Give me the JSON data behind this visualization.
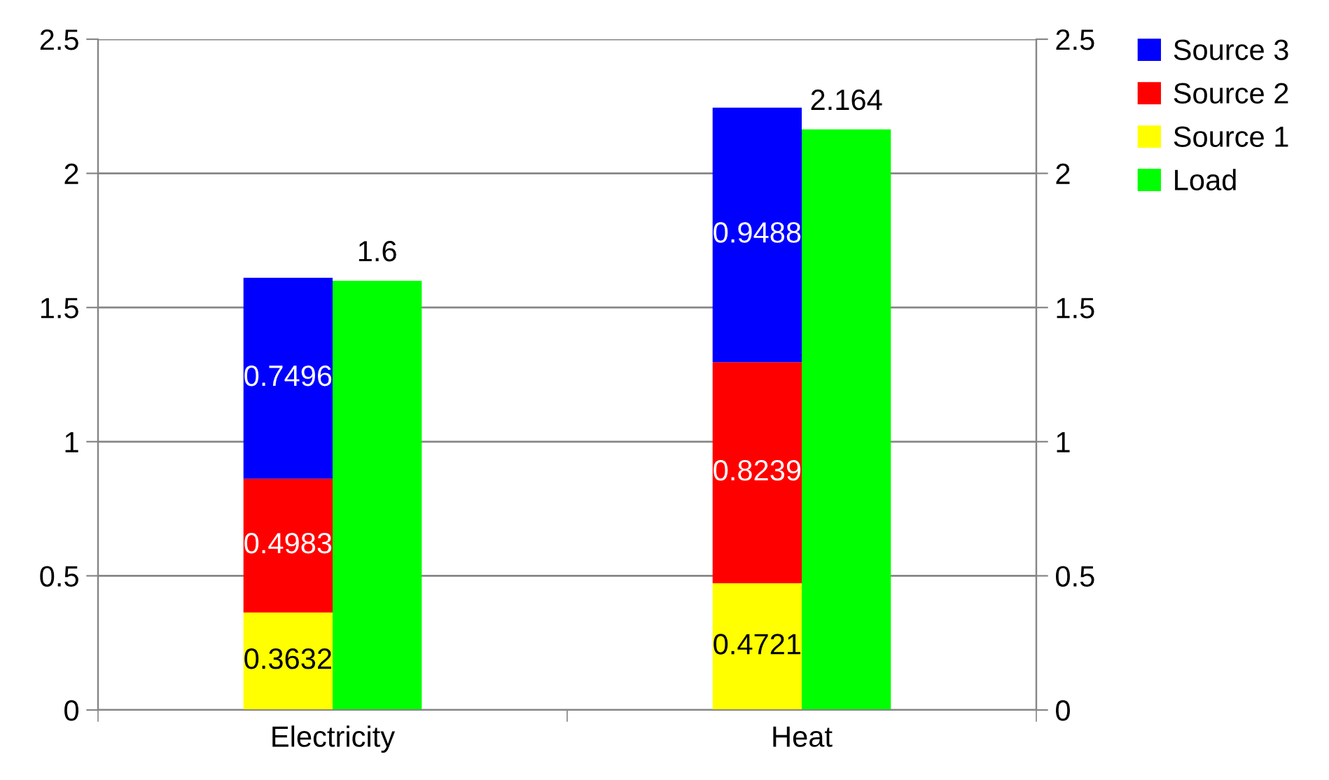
{
  "chart_data": {
    "type": "bar",
    "stacked": true,
    "categories": [
      "Electricity",
      "Heat"
    ],
    "series": [
      {
        "name": "Source 1",
        "color": "#ffff00",
        "values": [
          0.3632,
          0.4721
        ]
      },
      {
        "name": "Source 2",
        "color": "#ff0000",
        "values": [
          0.4983,
          0.8239
        ]
      },
      {
        "name": "Source 3",
        "color": "#0000ff",
        "values": [
          0.7496,
          0.9488
        ]
      },
      {
        "name": "Load",
        "color": "#00ff00",
        "values": [
          1.6,
          2.164
        ],
        "axis": "y2"
      }
    ],
    "ylim": [
      0,
      2.5
    ],
    "yticks": [
      0,
      0.5,
      1,
      1.5,
      2,
      2.5
    ],
    "y2lim": [
      0,
      2.5
    ],
    "y2ticks": [
      0,
      0.5,
      1,
      1.5,
      2,
      2.5
    ],
    "grid": "y",
    "legend": "right",
    "data_labels": true
  }
}
